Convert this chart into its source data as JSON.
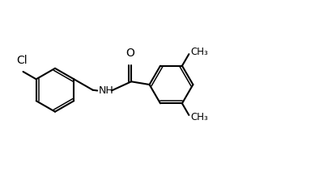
{
  "background_color": "#ffffff",
  "line_color": "#000000",
  "line_width": 1.5,
  "font_size": 9,
  "figsize": [
    3.94,
    2.16
  ],
  "dpi": 100,
  "xlim": [
    0,
    10.5
  ],
  "ylim": [
    -0.5,
    2.8
  ]
}
